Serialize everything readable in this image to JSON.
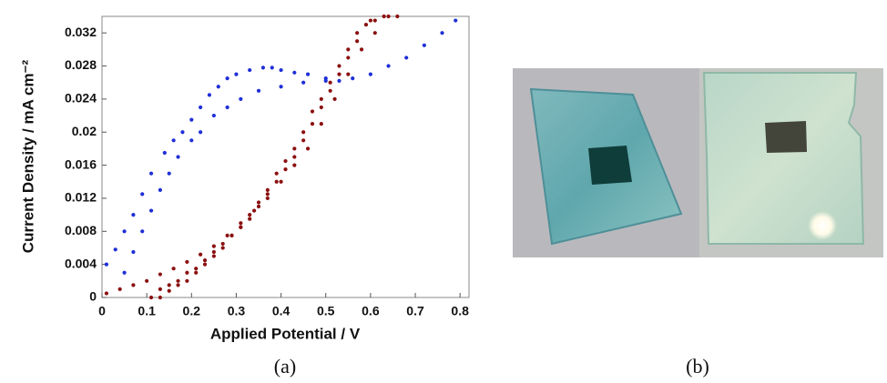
{
  "chart_data": {
    "type": "scatter",
    "xlabel": "Applied Potential / V",
    "ylabel": "Current Density / mA cm⁻²",
    "xlim": [
      0,
      0.82
    ],
    "ylim": [
      0,
      0.034
    ],
    "xticks": [
      0,
      0.1,
      0.2,
      0.3,
      0.4,
      0.5,
      0.6,
      0.7,
      0.8
    ],
    "yticks": [
      0,
      0.004,
      0.008,
      0.012,
      0.016,
      0.02,
      0.024,
      0.028,
      0.032
    ],
    "grid": false,
    "series": [
      {
        "color": "#1f2fd6",
        "x": [
          0.01,
          0.03,
          0.05,
          0.07,
          0.09,
          0.11,
          0.14,
          0.16,
          0.18,
          0.2,
          0.22,
          0.24,
          0.26,
          0.28,
          0.3,
          0.33,
          0.36,
          0.38,
          0.4,
          0.43,
          0.46,
          0.5,
          0.53,
          0.56,
          0.6,
          0.64,
          0.68,
          0.72,
          0.76,
          0.79
        ],
        "values": [
          0.004,
          0.0058,
          0.008,
          0.01,
          0.0125,
          0.015,
          0.0175,
          0.019,
          0.02,
          0.0215,
          0.023,
          0.0245,
          0.0255,
          0.0265,
          0.027,
          0.0275,
          0.0278,
          0.0278,
          0.0275,
          0.0272,
          0.027,
          0.0265,
          0.0262,
          0.0265,
          0.027,
          0.028,
          0.029,
          0.0305,
          0.032,
          0.0335
        ]
      },
      {
        "color": "#1f2fd6",
        "x": [
          0.05,
          0.07,
          0.09,
          0.11,
          0.13,
          0.15,
          0.17,
          0.2,
          0.22,
          0.25,
          0.28,
          0.31,
          0.35,
          0.4,
          0.45,
          0.5
        ],
        "values": [
          0.003,
          0.0055,
          0.008,
          0.0105,
          0.013,
          0.015,
          0.017,
          0.019,
          0.02,
          0.022,
          0.023,
          0.024,
          0.025,
          0.0255,
          0.026,
          0.0262
        ]
      },
      {
        "color": "#8b1010",
        "x": [
          0.01,
          0.04,
          0.07,
          0.1,
          0.13,
          0.16,
          0.19,
          0.22,
          0.25,
          0.28,
          0.31,
          0.34,
          0.37,
          0.4,
          0.43,
          0.46,
          0.49,
          0.52,
          0.55,
          0.58,
          0.61,
          0.64
        ],
        "values": [
          0.0005,
          0.001,
          0.0015,
          0.002,
          0.0028,
          0.0035,
          0.0043,
          0.0052,
          0.0062,
          0.0075,
          0.009,
          0.0105,
          0.012,
          0.014,
          0.016,
          0.018,
          0.021,
          0.024,
          0.027,
          0.03,
          0.032,
          0.034
        ]
      },
      {
        "color": "#8b1010",
        "x": [
          0.11,
          0.13,
          0.15,
          0.17,
          0.19,
          0.21,
          0.23,
          0.25,
          0.27,
          0.29,
          0.31,
          0.33,
          0.35,
          0.37,
          0.39,
          0.41,
          0.43,
          0.45,
          0.47,
          0.49,
          0.51,
          0.53,
          0.55,
          0.57,
          0.59,
          0.61
        ],
        "values": [
          0,
          0.001,
          0.0015,
          0.002,
          0.003,
          0.0035,
          0.0045,
          0.0055,
          0.0065,
          0.0075,
          0.0085,
          0.0095,
          0.011,
          0.0125,
          0.014,
          0.0155,
          0.017,
          0.019,
          0.021,
          0.023,
          0.025,
          0.027,
          0.029,
          0.031,
          0.033,
          0.0335
        ]
      },
      {
        "color": "#8b1010",
        "x": [
          0.13,
          0.15,
          0.17,
          0.19,
          0.21,
          0.23,
          0.25,
          0.27,
          0.29,
          0.31,
          0.33,
          0.35,
          0.37,
          0.39,
          0.41,
          0.43,
          0.45,
          0.47,
          0.49,
          0.51,
          0.53,
          0.55,
          0.57,
          0.6,
          0.63,
          0.66
        ],
        "values": [
          0,
          0.0008,
          0.0015,
          0.002,
          0.003,
          0.004,
          0.005,
          0.006,
          0.0075,
          0.0085,
          0.01,
          0.0115,
          0.013,
          0.015,
          0.0165,
          0.018,
          0.02,
          0.0225,
          0.024,
          0.026,
          0.028,
          0.03,
          0.032,
          0.0335,
          0.034,
          0.034
        ]
      }
    ]
  },
  "captions": [
    "(a)",
    "(b)"
  ]
}
